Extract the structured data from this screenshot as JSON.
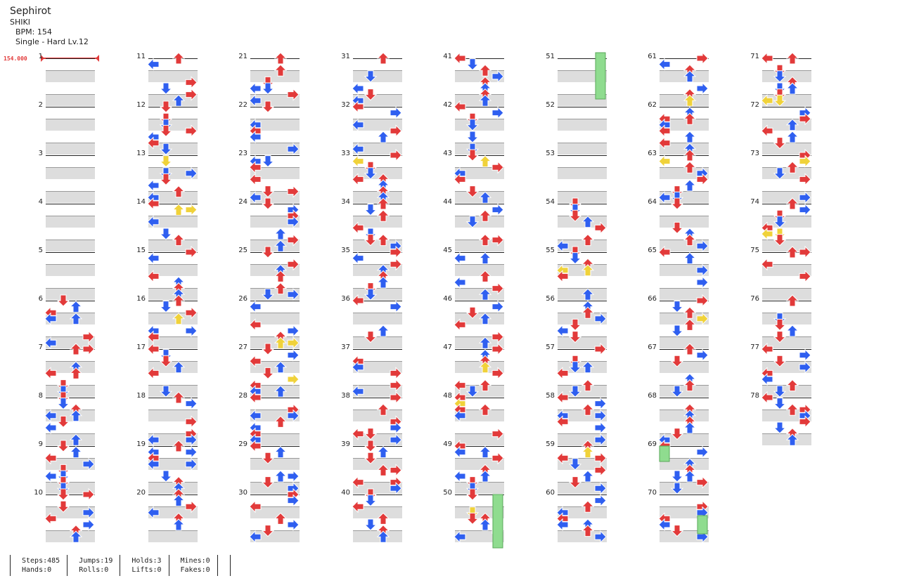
{
  "song": {
    "title": "Sephirot",
    "artist": "SHIKI",
    "bpm_label": "BPM: 154",
    "difficulty_label": "Single - Hard  Lv.12"
  },
  "bpm_change": {
    "value": "154.000"
  },
  "chart_view": {
    "measure_count": 78,
    "columns": 8,
    "measures_per_column": 10,
    "lanes": [
      "left",
      "down",
      "up",
      "right"
    ],
    "colors": {
      "quarter": "#e23a3a",
      "eighth": "#2f5ff0",
      "sixteenth": "#f0d23a",
      "hold": "#8fdc8f",
      "band": "#dddddd"
    },
    "measure_labels": [
      "1",
      "2",
      "3",
      "4",
      "5",
      "6",
      "7",
      "8",
      "9",
      "10",
      "11",
      "12",
      "13",
      "14",
      "15",
      "16",
      "17",
      "18",
      "19",
      "20",
      "21",
      "22",
      "23",
      "24",
      "25",
      "26",
      "27",
      "28",
      "29",
      "30",
      "31",
      "32",
      "33",
      "34",
      "35",
      "36",
      "37",
      "38",
      "39",
      "40",
      "41",
      "42",
      "43",
      "44",
      "45",
      "46",
      "47",
      "48",
      "49",
      "50",
      "51",
      "52",
      "53",
      "54",
      "55",
      "56",
      "57",
      "58",
      "59",
      "60",
      "61",
      "62",
      "63",
      "64",
      "65",
      "66",
      "67",
      "68",
      "69",
      "70",
      "71",
      "72",
      "73",
      "74",
      "75",
      "76",
      "77",
      "78"
    ]
  },
  "stats": {
    "steps": "Steps:485",
    "hands": "Hands:0",
    "jumps": "Jumps:19",
    "rolls": "Rolls:0",
    "holds": "Holds:3",
    "lifts": "Lifts:0",
    "mines": "Mines:0",
    "fakes": "Fakes:0"
  }
}
